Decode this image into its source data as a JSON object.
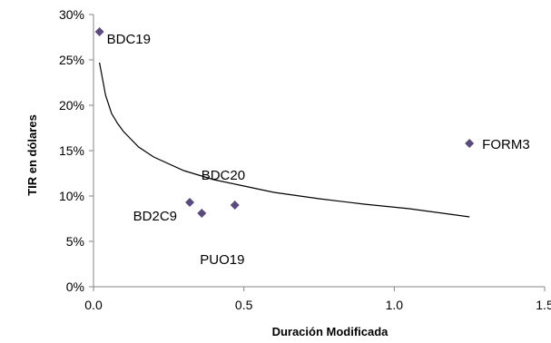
{
  "chart_data": {
    "type": "scatter",
    "title": "",
    "xlabel": "Duración Modificada",
    "ylabel": "TIR en dólares",
    "xlim": [
      0,
      1.5
    ],
    "ylim": [
      0,
      0.3
    ],
    "xticks": [
      0,
      0.5,
      1.0,
      1.5
    ],
    "xtick_labels": [
      "0.0",
      "0.5",
      "1.0",
      "1.5"
    ],
    "yticks": [
      0,
      0.05,
      0.1,
      0.15,
      0.2,
      0.25,
      0.3
    ],
    "ytick_labels": [
      "0%",
      "5%",
      "10%",
      "15%",
      "20%",
      "25%",
      "30%"
    ],
    "grid": false,
    "legend": "none",
    "marker": "diamond",
    "marker_color": "#5b4a7f",
    "line_color": "#000000",
    "points": [
      {
        "label": "BDC19",
        "x": 0.02,
        "y": 0.281
      },
      {
        "label": "BD2C9",
        "x": 0.32,
        "y": 0.093
      },
      {
        "label": "PUO19",
        "x": 0.36,
        "y": 0.081
      },
      {
        "label": "BDC20",
        "x": 0.47,
        "y": 0.09
      },
      {
        "label": "FORM3",
        "x": 1.25,
        "y": 0.158
      }
    ],
    "trendline": {
      "type": "power",
      "x": [
        0.02,
        0.04,
        0.06,
        0.08,
        0.1,
        0.15,
        0.2,
        0.3,
        0.4,
        0.5,
        0.6,
        0.75,
        0.9,
        1.05,
        1.25
      ],
      "y": [
        0.247,
        0.211,
        0.191,
        0.18,
        0.171,
        0.154,
        0.143,
        0.128,
        0.118,
        0.111,
        0.104,
        0.097,
        0.091,
        0.086,
        0.077
      ]
    }
  }
}
